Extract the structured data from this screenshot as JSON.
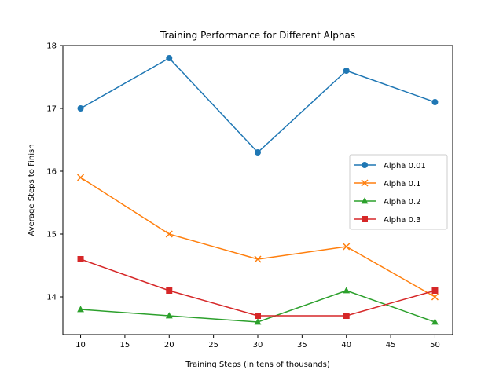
{
  "chart_data": {
    "type": "line",
    "title": "Training Performance for Different Alphas",
    "xlabel": "Training Steps (in tens of thousands)",
    "ylabel": "Average Steps to Finish",
    "x": [
      10,
      20,
      30,
      40,
      50
    ],
    "xlim": [
      8,
      52
    ],
    "ylim": [
      13.4,
      18.0
    ],
    "xticks": [
      10,
      15,
      20,
      25,
      30,
      35,
      40,
      45,
      50
    ],
    "yticks": [
      14,
      15,
      16,
      17,
      18
    ],
    "grid": false,
    "legend_position": "center-right",
    "series": [
      {
        "name": "Alpha 0.01",
        "values": [
          17.0,
          17.8,
          16.3,
          17.6,
          17.1
        ],
        "color": "#1f77b4",
        "marker": "circle"
      },
      {
        "name": "Alpha 0.1",
        "values": [
          15.9,
          15.0,
          14.6,
          14.8,
          14.0
        ],
        "color": "#ff7f0e",
        "marker": "x"
      },
      {
        "name": "Alpha 0.2",
        "values": [
          13.8,
          13.7,
          13.6,
          14.1,
          13.6
        ],
        "color": "#2ca02c",
        "marker": "triangle"
      },
      {
        "name": "Alpha 0.3",
        "values": [
          14.6,
          14.1,
          13.7,
          13.7,
          14.1
        ],
        "color": "#d62728",
        "marker": "square"
      }
    ]
  }
}
